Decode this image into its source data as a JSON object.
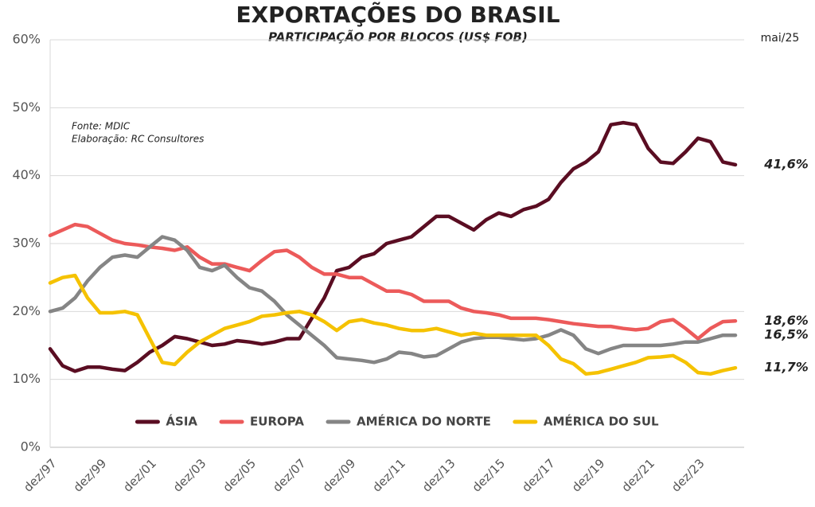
{
  "chart_data": {
    "type": "line",
    "title": "EXPORTAÇÕES DO BRASIL",
    "subtitle": "PARTICIPAÇÃO POR BLOCOS (US$ FOB)",
    "date_note": "mai/25",
    "source": "Fonte: MDIC",
    "credit": "Elaboração: RC Consultores",
    "categories": [
      "dez/97",
      null,
      null,
      null,
      "dez/99",
      null,
      null,
      null,
      "dez/01",
      null,
      null,
      null,
      "dez/03",
      null,
      null,
      null,
      "dez/05",
      null,
      null,
      null,
      "dez/07",
      null,
      null,
      null,
      "dez/09",
      null,
      null,
      null,
      "dez/11",
      null,
      null,
      null,
      "dez/13",
      null,
      null,
      null,
      "dez/15",
      null,
      null,
      null,
      "dez/17",
      null,
      null,
      null,
      "dez/19",
      null,
      null,
      null,
      "dez/21",
      null,
      null,
      null,
      "dez/23",
      null,
      null,
      null
    ],
    "ylim": [
      0,
      60
    ],
    "yticks": [
      {
        "value": 0,
        "label": "0%"
      },
      {
        "value": 10,
        "label": "10%"
      },
      {
        "value": 20,
        "label": "20%"
      },
      {
        "value": 30,
        "label": "30%"
      },
      {
        "value": 40,
        "label": "40%"
      },
      {
        "value": 50,
        "label": "50%"
      },
      {
        "value": 60,
        "label": "60%"
      }
    ],
    "grid": true,
    "legend": "bottom",
    "series": [
      {
        "name": "ÁSIA",
        "color": "#5a0d22",
        "label_color": "#5a0d22",
        "values": [
          14.5,
          12,
          11.2,
          11.8,
          11.8,
          11.5,
          11.3,
          12.5,
          14,
          15,
          16.3,
          16,
          15.5,
          15,
          15.2,
          15.7,
          15.5,
          15.2,
          15.5,
          16,
          16,
          19,
          22,
          26,
          26.5,
          28,
          28.5,
          30,
          30.5,
          31,
          32.5,
          34,
          34,
          33,
          32,
          33.5,
          34.5,
          34,
          35,
          35.5,
          36.5,
          39,
          41,
          42,
          43.5,
          47.5,
          47.8,
          47.5,
          44,
          42,
          41.8,
          43.5,
          45.5,
          45,
          42,
          41.6
        ],
        "value_labels": [
          null,
          null,
          null,
          null,
          null,
          null,
          null,
          null,
          null,
          null,
          null,
          null,
          null,
          null,
          null,
          null,
          null,
          null,
          null,
          null,
          null,
          null,
          null,
          null,
          null,
          null,
          null,
          null,
          null,
          null,
          null,
          null,
          null,
          null,
          null,
          null,
          null,
          null,
          null,
          null,
          null,
          null,
          null,
          null,
          null,
          null,
          null,
          null,
          null,
          null,
          null,
          null,
          null,
          null,
          null,
          "41,6%"
        ]
      },
      {
        "name": "EUROPA",
        "color": "#ec5a5a",
        "label_color": "#ec5a5a",
        "values": [
          31.2,
          32,
          32.8,
          32.5,
          31.5,
          30.5,
          30,
          29.8,
          29.5,
          29.3,
          29,
          29.5,
          28,
          27,
          27,
          26.5,
          26,
          27.5,
          28.8,
          29,
          28,
          26.5,
          25.5,
          25.5,
          25,
          25,
          24,
          23,
          23,
          22.5,
          21.5,
          21.5,
          21.5,
          20.5,
          20,
          19.8,
          19.5,
          19,
          19,
          19,
          18.8,
          18.5,
          18.2,
          18,
          17.8,
          17.8,
          17.5,
          17.3,
          17.5,
          18.5,
          18.8,
          17.5,
          16,
          17.5,
          18.5,
          18.6
        ],
        "value_labels": [
          null,
          null,
          null,
          null,
          null,
          null,
          null,
          null,
          null,
          null,
          null,
          null,
          null,
          null,
          null,
          null,
          null,
          null,
          null,
          null,
          null,
          null,
          null,
          null,
          null,
          null,
          null,
          null,
          null,
          null,
          null,
          null,
          null,
          null,
          null,
          null,
          null,
          null,
          null,
          null,
          null,
          null,
          null,
          null,
          null,
          null,
          null,
          null,
          null,
          null,
          null,
          null,
          null,
          null,
          null,
          "18,6%"
        ]
      },
      {
        "name": "AMÉRICA DO NORTE",
        "color": "#858585",
        "label_color": "#222222",
        "values": [
          20,
          20.5,
          22,
          24.5,
          26.5,
          28,
          28.3,
          28,
          29.5,
          31,
          30.5,
          29,
          26.5,
          26,
          26.8,
          25,
          23.5,
          23,
          21.5,
          19.5,
          18,
          16.5,
          15,
          13.2,
          13,
          12.8,
          12.5,
          13,
          14,
          13.8,
          13.3,
          13.5,
          14.5,
          15.5,
          16,
          16.2,
          16.2,
          16,
          15.8,
          16,
          16.5,
          17.3,
          16.5,
          14.5,
          13.8,
          14.5,
          15,
          15,
          15,
          15,
          15.2,
          15.5,
          15.5,
          16,
          16.5,
          16.5
        ],
        "value_labels": [
          null,
          null,
          null,
          null,
          null,
          null,
          null,
          null,
          null,
          null,
          null,
          null,
          null,
          null,
          null,
          null,
          null,
          null,
          null,
          null,
          null,
          null,
          null,
          null,
          null,
          null,
          null,
          null,
          null,
          null,
          null,
          null,
          null,
          null,
          null,
          null,
          null,
          null,
          null,
          null,
          null,
          null,
          null,
          null,
          null,
          null,
          null,
          null,
          null,
          null,
          null,
          null,
          null,
          null,
          null,
          "16,5%"
        ]
      },
      {
        "name": "AMÉRICA DO SUL",
        "color": "#f5c200",
        "label_color": "#c79c00",
        "values": [
          24.2,
          25,
          25.3,
          22,
          19.8,
          19.8,
          20,
          19.5,
          16,
          12.5,
          12.2,
          14,
          15.5,
          16.5,
          17.5,
          18,
          18.5,
          19.3,
          19.5,
          19.8,
          20,
          19.5,
          18.5,
          17.2,
          18.5,
          18.8,
          18.3,
          18,
          17.5,
          17.2,
          17.2,
          17.5,
          17,
          16.5,
          16.8,
          16.5,
          16.5,
          16.5,
          16.5,
          16.5,
          15,
          13,
          12.3,
          10.8,
          11,
          11.5,
          12,
          12.5,
          13.2,
          13.3,
          13.5,
          12.5,
          11,
          10.8,
          11.3,
          11.7
        ],
        "value_labels": [
          null,
          null,
          null,
          null,
          null,
          null,
          null,
          null,
          null,
          null,
          null,
          null,
          null,
          null,
          null,
          null,
          null,
          null,
          null,
          null,
          null,
          null,
          null,
          null,
          null,
          null,
          null,
          null,
          null,
          null,
          null,
          null,
          null,
          null,
          null,
          null,
          null,
          null,
          null,
          null,
          null,
          null,
          null,
          null,
          null,
          null,
          null,
          null,
          null,
          null,
          null,
          null,
          null,
          null,
          null,
          "11,7%"
        ]
      }
    ]
  }
}
